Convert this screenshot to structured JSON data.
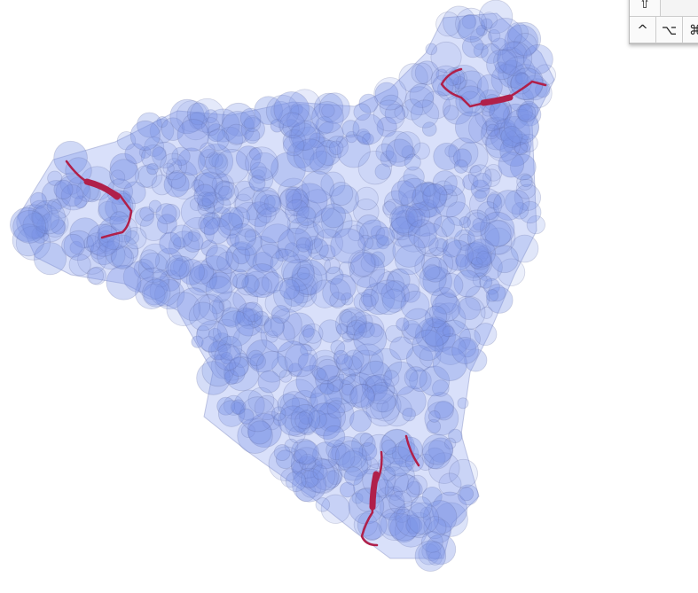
{
  "key_panel": {
    "rows": [
      [
        "⇧"
      ],
      [
        "^",
        "⌥",
        "⌘"
      ]
    ]
  }
}
